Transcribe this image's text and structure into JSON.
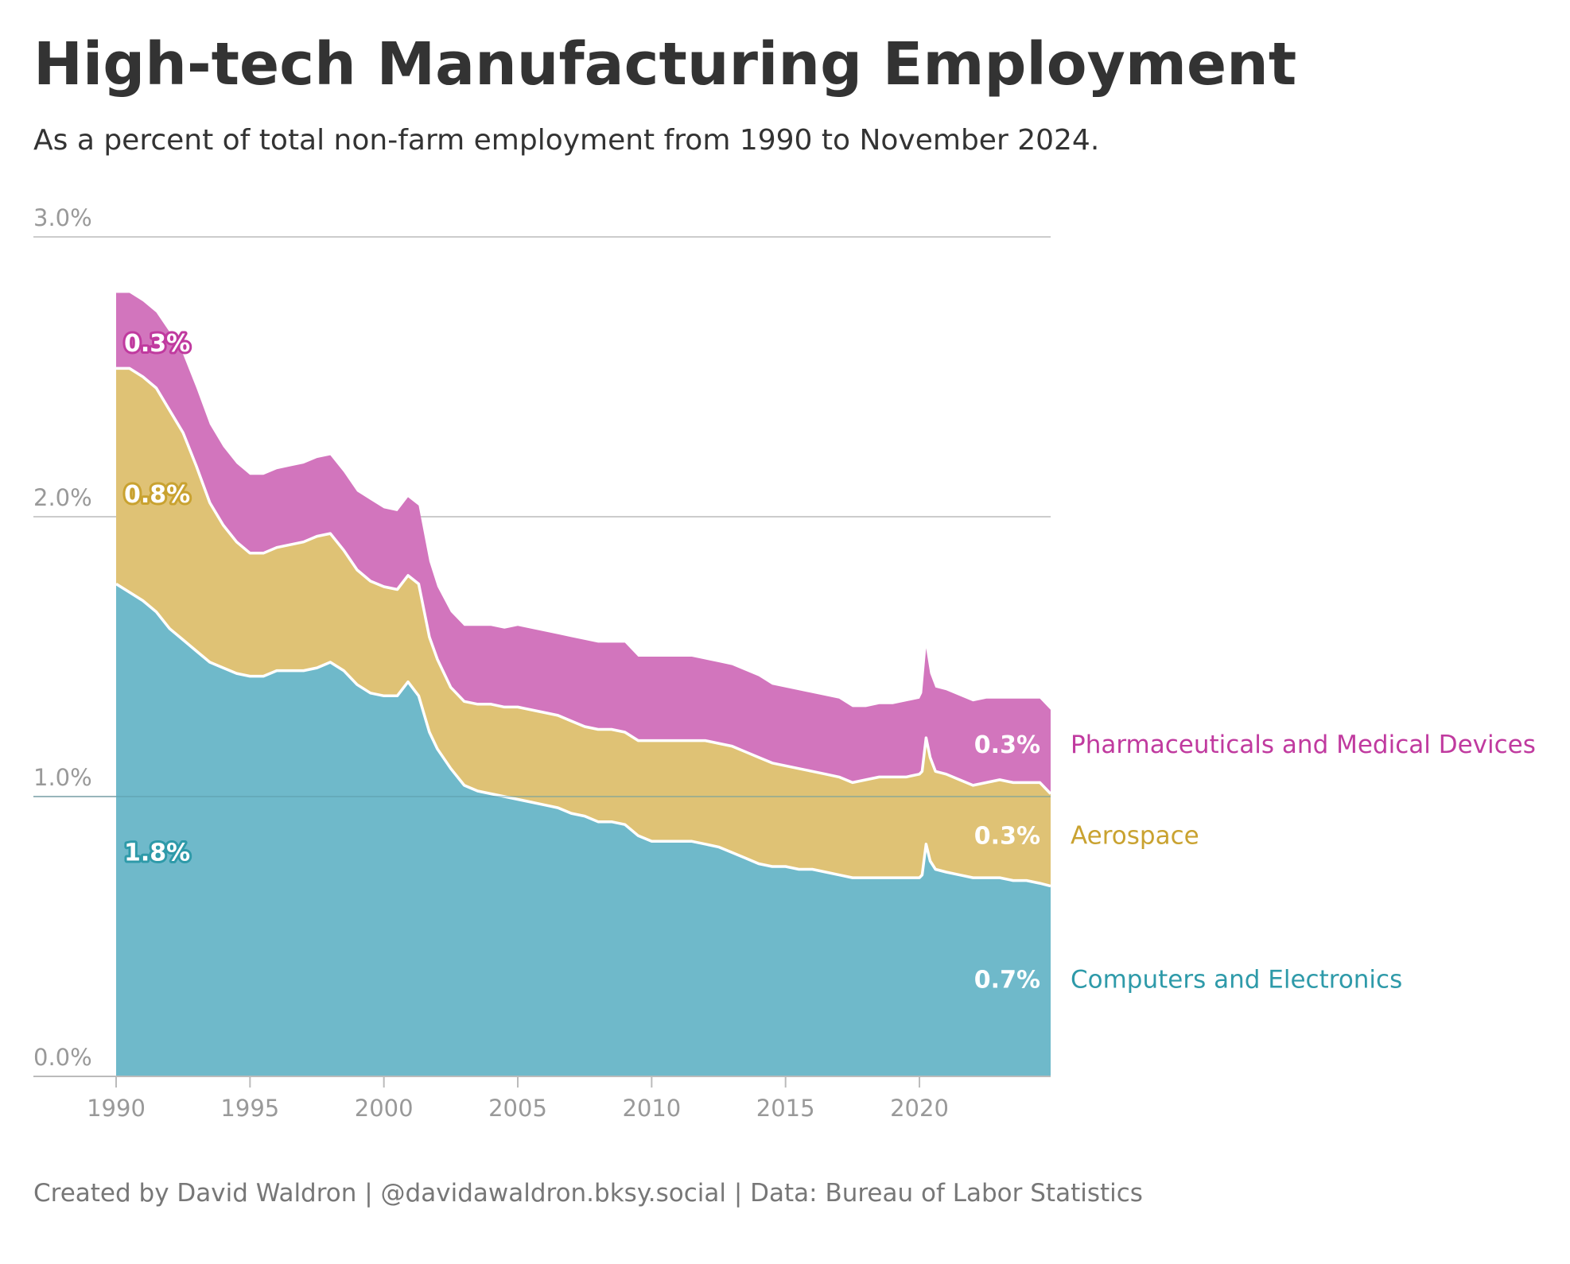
{
  "title": "High-tech Manufacturing Employment",
  "subtitle": "As a percent of total non-farm employment from 1990 to November 2024.",
  "footer": "Created by David Waldron | @davidawaldron.bksy.social | Data: Bureau of Labor Statistics",
  "colors": {
    "computers": "#6fb9ca",
    "aerospace": "#dfc275",
    "pharma": "#d275bd",
    "computers_text": "#2e9aa9",
    "aerospace_text": "#c9a230",
    "pharma_text": "#c03a9f",
    "grid": "#cccccc",
    "axis_text": "#999999"
  },
  "chart_data": {
    "type": "area",
    "stacked": true,
    "xlim": [
      1990,
      2024.9
    ],
    "ylim": [
      0,
      3.0
    ],
    "y_ticks": [
      0,
      1,
      2,
      3
    ],
    "y_tick_labels": [
      "0.0%",
      "1.0%",
      "2.0%",
      "3.0%"
    ],
    "x_ticks": [
      1990,
      1995,
      2000,
      2005,
      2010,
      2015,
      2020
    ],
    "x_tick_labels": [
      "1990",
      "1995",
      "2000",
      "2005",
      "2010",
      "2015",
      "2020"
    ],
    "grid": true,
    "x": [
      1990.0,
      1990.5,
      1991.0,
      1991.5,
      1992.0,
      1992.5,
      1993.0,
      1993.5,
      1994.0,
      1994.5,
      1995.0,
      1995.5,
      1996.0,
      1996.5,
      1997.0,
      1997.5,
      1998.0,
      1998.5,
      1999.0,
      1999.5,
      2000.0,
      2000.5,
      2000.9,
      2001.3,
      2001.7,
      2002.0,
      2002.5,
      2003.0,
      2003.5,
      2004.0,
      2004.5,
      2005.0,
      2005.5,
      2006.0,
      2006.5,
      2007.0,
      2007.5,
      2008.0,
      2008.5,
      2009.0,
      2009.5,
      2010.0,
      2010.5,
      2011.0,
      2011.5,
      2012.0,
      2012.5,
      2013.0,
      2013.5,
      2014.0,
      2014.5,
      2015.0,
      2015.5,
      2016.0,
      2016.5,
      2017.0,
      2017.5,
      2018.0,
      2018.5,
      2019.0,
      2019.5,
      2020.0,
      2020.1,
      2020.25,
      2020.4,
      2020.6,
      2021.0,
      2021.5,
      2022.0,
      2022.5,
      2023.0,
      2023.5,
      2024.0,
      2024.5,
      2024.9
    ],
    "series": [
      {
        "name": "Computers and Electronics",
        "label": "0.7%",
        "start_label": "1.8%",
        "values": [
          1.76,
          1.73,
          1.7,
          1.66,
          1.6,
          1.56,
          1.52,
          1.48,
          1.46,
          1.44,
          1.43,
          1.43,
          1.45,
          1.45,
          1.45,
          1.46,
          1.48,
          1.45,
          1.4,
          1.37,
          1.36,
          1.36,
          1.41,
          1.36,
          1.23,
          1.17,
          1.1,
          1.04,
          1.02,
          1.01,
          1.0,
          0.99,
          0.98,
          0.97,
          0.96,
          0.94,
          0.93,
          0.91,
          0.91,
          0.9,
          0.86,
          0.84,
          0.84,
          0.84,
          0.84,
          0.83,
          0.82,
          0.8,
          0.78,
          0.76,
          0.75,
          0.75,
          0.74,
          0.74,
          0.73,
          0.72,
          0.71,
          0.71,
          0.71,
          0.71,
          0.71,
          0.71,
          0.72,
          0.83,
          0.77,
          0.74,
          0.73,
          0.72,
          0.71,
          0.71,
          0.71,
          0.7,
          0.7,
          0.69,
          0.68
        ]
      },
      {
        "name": "Aerospace",
        "label": "0.3%",
        "start_label": "0.8%",
        "values": [
          0.77,
          0.8,
          0.8,
          0.8,
          0.78,
          0.74,
          0.66,
          0.57,
          0.51,
          0.47,
          0.44,
          0.44,
          0.44,
          0.45,
          0.46,
          0.47,
          0.46,
          0.43,
          0.41,
          0.4,
          0.39,
          0.38,
          0.38,
          0.4,
          0.34,
          0.32,
          0.29,
          0.3,
          0.31,
          0.32,
          0.32,
          0.33,
          0.33,
          0.33,
          0.33,
          0.33,
          0.32,
          0.33,
          0.33,
          0.33,
          0.34,
          0.36,
          0.36,
          0.36,
          0.36,
          0.37,
          0.37,
          0.38,
          0.38,
          0.38,
          0.37,
          0.36,
          0.36,
          0.35,
          0.35,
          0.35,
          0.34,
          0.35,
          0.36,
          0.36,
          0.36,
          0.37,
          0.37,
          0.38,
          0.37,
          0.35,
          0.35,
          0.34,
          0.33,
          0.34,
          0.35,
          0.35,
          0.35,
          0.36,
          0.33
        ]
      },
      {
        "name": "Pharmaceuticals and Medical Devices",
        "label": "0.3%",
        "start_label": "0.3%",
        "values": [
          0.27,
          0.27,
          0.27,
          0.27,
          0.28,
          0.28,
          0.28,
          0.28,
          0.28,
          0.28,
          0.28,
          0.28,
          0.28,
          0.28,
          0.28,
          0.28,
          0.28,
          0.28,
          0.28,
          0.29,
          0.28,
          0.28,
          0.28,
          0.28,
          0.27,
          0.26,
          0.27,
          0.27,
          0.28,
          0.28,
          0.28,
          0.29,
          0.29,
          0.29,
          0.29,
          0.3,
          0.31,
          0.31,
          0.31,
          0.32,
          0.3,
          0.3,
          0.3,
          0.3,
          0.3,
          0.29,
          0.29,
          0.29,
          0.29,
          0.29,
          0.28,
          0.28,
          0.28,
          0.28,
          0.28,
          0.28,
          0.27,
          0.26,
          0.26,
          0.26,
          0.27,
          0.27,
          0.28,
          0.32,
          0.3,
          0.3,
          0.3,
          0.3,
          0.3,
          0.3,
          0.29,
          0.3,
          0.3,
          0.3,
          0.3
        ]
      }
    ]
  }
}
